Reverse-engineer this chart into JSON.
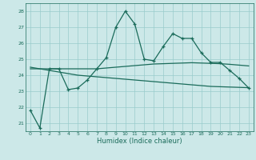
{
  "xlabel": "Humidex (Indice chaleur)",
  "bg_color": "#cce8e8",
  "line_color": "#1a6b5a",
  "grid_color": "#99cccc",
  "x": [
    0,
    1,
    2,
    3,
    4,
    5,
    6,
    7,
    8,
    9,
    10,
    11,
    12,
    13,
    14,
    15,
    16,
    17,
    18,
    19,
    20,
    21,
    22,
    23
  ],
  "y_main": [
    21.8,
    20.7,
    24.4,
    24.4,
    23.1,
    23.2,
    23.7,
    24.4,
    25.1,
    27.0,
    28.0,
    27.2,
    25.0,
    24.9,
    25.8,
    26.6,
    26.3,
    26.3,
    25.4,
    24.8,
    24.8,
    24.3,
    23.8,
    23.2
  ],
  "y_avg1": [
    24.4,
    24.4,
    24.4,
    24.4,
    24.4,
    24.4,
    24.4,
    24.4,
    24.45,
    24.5,
    24.55,
    24.6,
    24.65,
    24.7,
    24.72,
    24.74,
    24.76,
    24.78,
    24.76,
    24.74,
    24.72,
    24.68,
    24.63,
    24.58
  ],
  "y_avg2": [
    24.5,
    24.4,
    24.3,
    24.2,
    24.1,
    24.0,
    23.95,
    23.9,
    23.85,
    23.8,
    23.75,
    23.7,
    23.65,
    23.6,
    23.55,
    23.5,
    23.45,
    23.4,
    23.35,
    23.3,
    23.28,
    23.26,
    23.24,
    23.22
  ],
  "ylim": [
    20.5,
    28.5
  ],
  "yticks": [
    21,
    22,
    23,
    24,
    25,
    26,
    27,
    28
  ],
  "xlim": [
    -0.5,
    23.5
  ],
  "xticks": [
    0,
    1,
    2,
    3,
    4,
    5,
    6,
    7,
    8,
    9,
    10,
    11,
    12,
    13,
    14,
    15,
    16,
    17,
    18,
    19,
    20,
    21,
    22,
    23
  ]
}
